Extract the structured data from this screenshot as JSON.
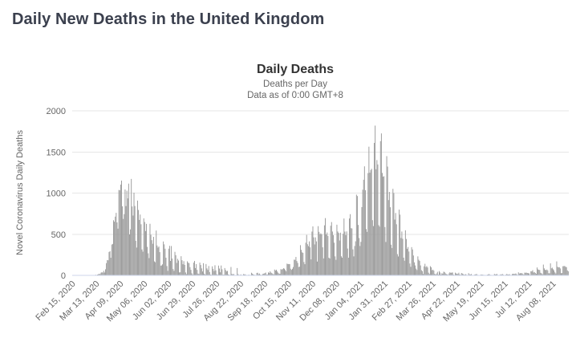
{
  "page": {
    "title": "Daily New Deaths in the United Kingdom"
  },
  "colors": {
    "page_title": "#3b404e",
    "chart_title": "#333333",
    "subtitle_text": "#666666",
    "axis_text": "#666666",
    "bar": "#999999",
    "gridline": "#e6e6e6",
    "x_axis_line": "#ccd6eb"
  },
  "chart_data": {
    "type": "bar",
    "title": "Daily Deaths",
    "subtitle1": "Deaths per Day",
    "subtitle2": "Data as of 0:00 GMT+8",
    "ylabel": "Novel Coronavirus Daily Deaths",
    "xlabel": "",
    "series_name": "Daily Deaths",
    "ylim": [
      0,
      2000
    ],
    "yticks": [
      0,
      500,
      1000,
      1500,
      2000
    ],
    "grid": true,
    "legend_position": "none",
    "bar_color": "#999999",
    "grid_color": "#e6e6e6",
    "axis_line_color": "#ccd6eb",
    "x_start_date": "Feb 15, 2020",
    "x_tick_labels": [
      "Feb 15, 2020",
      "Mar 13, 2020",
      "Apr 09, 2020",
      "May 06, 2020",
      "Jun 02, 2020",
      "Jun 29, 2020",
      "Jul 26, 2020",
      "Aug 22, 2020",
      "Sep 18, 2020",
      "Oct 15, 2020",
      "Nov 11, 2020",
      "Dec 08, 2020",
      "Jan 04, 2021",
      "Jan 31, 2021",
      "Feb 27, 2021",
      "Mar 26, 2021",
      "Apr 22, 2021",
      "May 19, 2021",
      "Jun 15, 2021",
      "Jul 12, 2021",
      "Aug 08, 2021"
    ],
    "x_tick_day_indices": [
      0,
      27,
      54,
      81,
      108,
      135,
      162,
      189,
      216,
      243,
      270,
      297,
      324,
      351,
      378,
      405,
      432,
      459,
      486,
      513,
      540
    ],
    "values": [
      0,
      0,
      0,
      0,
      0,
      0,
      0,
      0,
      0,
      0,
      0,
      0,
      0,
      0,
      0,
      0,
      0,
      0,
      0,
      1,
      2,
      1,
      2,
      2,
      3,
      4,
      8,
      2,
      10,
      14,
      20,
      16,
      33,
      40,
      33,
      56,
      35,
      74,
      149,
      186,
      183,
      284,
      294,
      214,
      374,
      382,
      670,
      652,
      714,
      760,
      644,
      568,
      1038,
      1034,
      1103,
      1152,
      839,
      686,
      744,
      1044,
      842,
      1029,
      935,
      1115,
      498,
      559,
      1172,
      837,
      727,
      1005,
      843,
      420,
      338,
      909,
      795,
      674,
      739,
      621,
      315,
      288,
      693,
      649,
      539,
      626,
      346,
      268,
      210,
      627,
      494,
      428,
      384,
      468,
      170,
      160,
      545,
      363,
      338,
      351,
      282,
      118,
      121,
      134,
      412,
      377,
      324,
      215,
      113,
      55,
      324,
      359,
      176,
      357,
      204,
      77,
      55,
      286,
      245,
      151,
      202,
      181,
      36,
      38,
      233,
      184,
      135,
      173,
      128,
      36,
      15,
      171,
      154,
      149,
      100,
      67,
      25,
      9,
      155,
      176,
      89,
      137,
      67,
      22,
      16,
      155,
      126,
      85,
      48,
      148,
      21,
      11,
      138,
      85,
      66,
      114,
      40,
      10,
      7,
      110,
      79,
      53,
      123,
      61,
      14,
      7,
      119,
      83,
      38,
      120,
      74,
      8,
      9,
      89,
      65,
      49,
      55,
      12,
      8,
      5,
      102,
      18,
      12,
      18,
      3,
      4,
      5,
      89,
      16,
      6,
      2,
      12,
      4,
      4,
      16,
      12,
      13,
      6,
      1,
      2,
      9,
      3,
      2,
      32,
      21,
      13,
      9,
      3,
      3,
      30,
      32,
      14,
      23,
      9,
      5,
      9,
      20,
      21,
      27,
      34,
      11,
      11,
      37,
      30,
      49,
      34,
      27,
      17,
      13,
      71,
      59,
      69,
      49,
      33,
      22,
      19,
      76,
      70,
      77,
      87,
      81,
      65,
      50,
      143,
      137,
      138,
      136,
      81,
      67,
      80,
      102,
      191,
      189,
      224,
      174,
      151,
      102,
      106,
      367,
      310,
      280,
      274,
      162,
      136,
      397,
      492,
      378,
      355,
      413,
      341,
      194,
      532,
      595,
      462,
      376,
      462,
      413,
      168,
      598,
      529,
      501,
      511,
      498,
      341,
      206,
      608,
      696,
      498,
      521,
      479,
      215,
      205,
      603,
      648,
      533,
      489,
      397,
      231,
      189,
      616,
      533,
      516,
      424,
      519,
      232,
      215,
      506,
      691,
      532,
      489,
      534,
      326,
      215,
      691,
      744,
      574,
      570,
      316,
      231,
      357,
      414,
      981,
      964,
      613,
      454,
      357,
      407,
      830,
      1041,
      1162,
      1325,
      1035,
      563,
      529,
      1243,
      1564,
      1248,
      1280,
      1295,
      671,
      599,
      1610,
      1820,
      1290,
      1401,
      1348,
      610,
      592,
      1631,
      1725,
      1245,
      1200,
      1205,
      587,
      406,
      1449,
      1322,
      915,
      1014,
      828,
      373,
      333,
      1052,
      1001,
      678,
      758,
      621,
      258,
      230,
      799,
      738,
      454,
      533,
      445,
      215,
      178,
      548,
      442,
      323,
      345,
      290,
      144,
      104,
      343,
      315,
      242,
      158,
      121,
      82,
      65,
      231,
      190,
      175,
      121,
      64,
      52,
      17,
      110,
      141,
      101,
      113,
      96,
      33,
      17,
      112,
      98,
      63,
      70,
      58,
      19,
      10,
      23,
      43,
      10,
      52,
      35,
      10,
      26,
      20,
      45,
      40,
      24,
      15,
      13,
      4,
      23,
      38,
      30,
      34,
      35,
      10,
      4,
      33,
      22,
      22,
      18,
      32,
      11,
      6,
      29,
      22,
      15,
      7,
      12,
      15,
      1,
      1,
      27,
      13,
      11,
      17,
      2,
      1,
      4,
      11,
      13,
      17,
      6,
      4,
      4,
      4,
      11,
      9,
      10,
      5,
      6,
      1,
      5,
      9,
      10,
      17,
      8,
      6,
      1,
      1,
      0,
      18,
      11,
      13,
      17,
      4,
      3,
      6,
      13,
      11,
      17,
      8,
      5,
      3,
      9,
      19,
      10,
      11,
      14,
      3,
      5,
      16,
      19,
      18,
      18,
      23,
      14,
      3,
      37,
      22,
      27,
      24,
      28,
      18,
      9,
      33,
      32,
      33,
      29,
      26,
      24,
      6,
      50,
      49,
      63,
      35,
      41,
      29,
      19,
      96,
      73,
      68,
      65,
      31,
      24,
      14,
      131,
      85,
      68,
      63,
      71,
      61,
      26,
      25,
      146,
      86,
      94,
      75,
      61,
      37,
      23,
      170,
      104,
      97,
      100,
      84,
      26,
      28,
      111,
      113,
      114,
      104,
      100,
      61,
      50
    ]
  }
}
